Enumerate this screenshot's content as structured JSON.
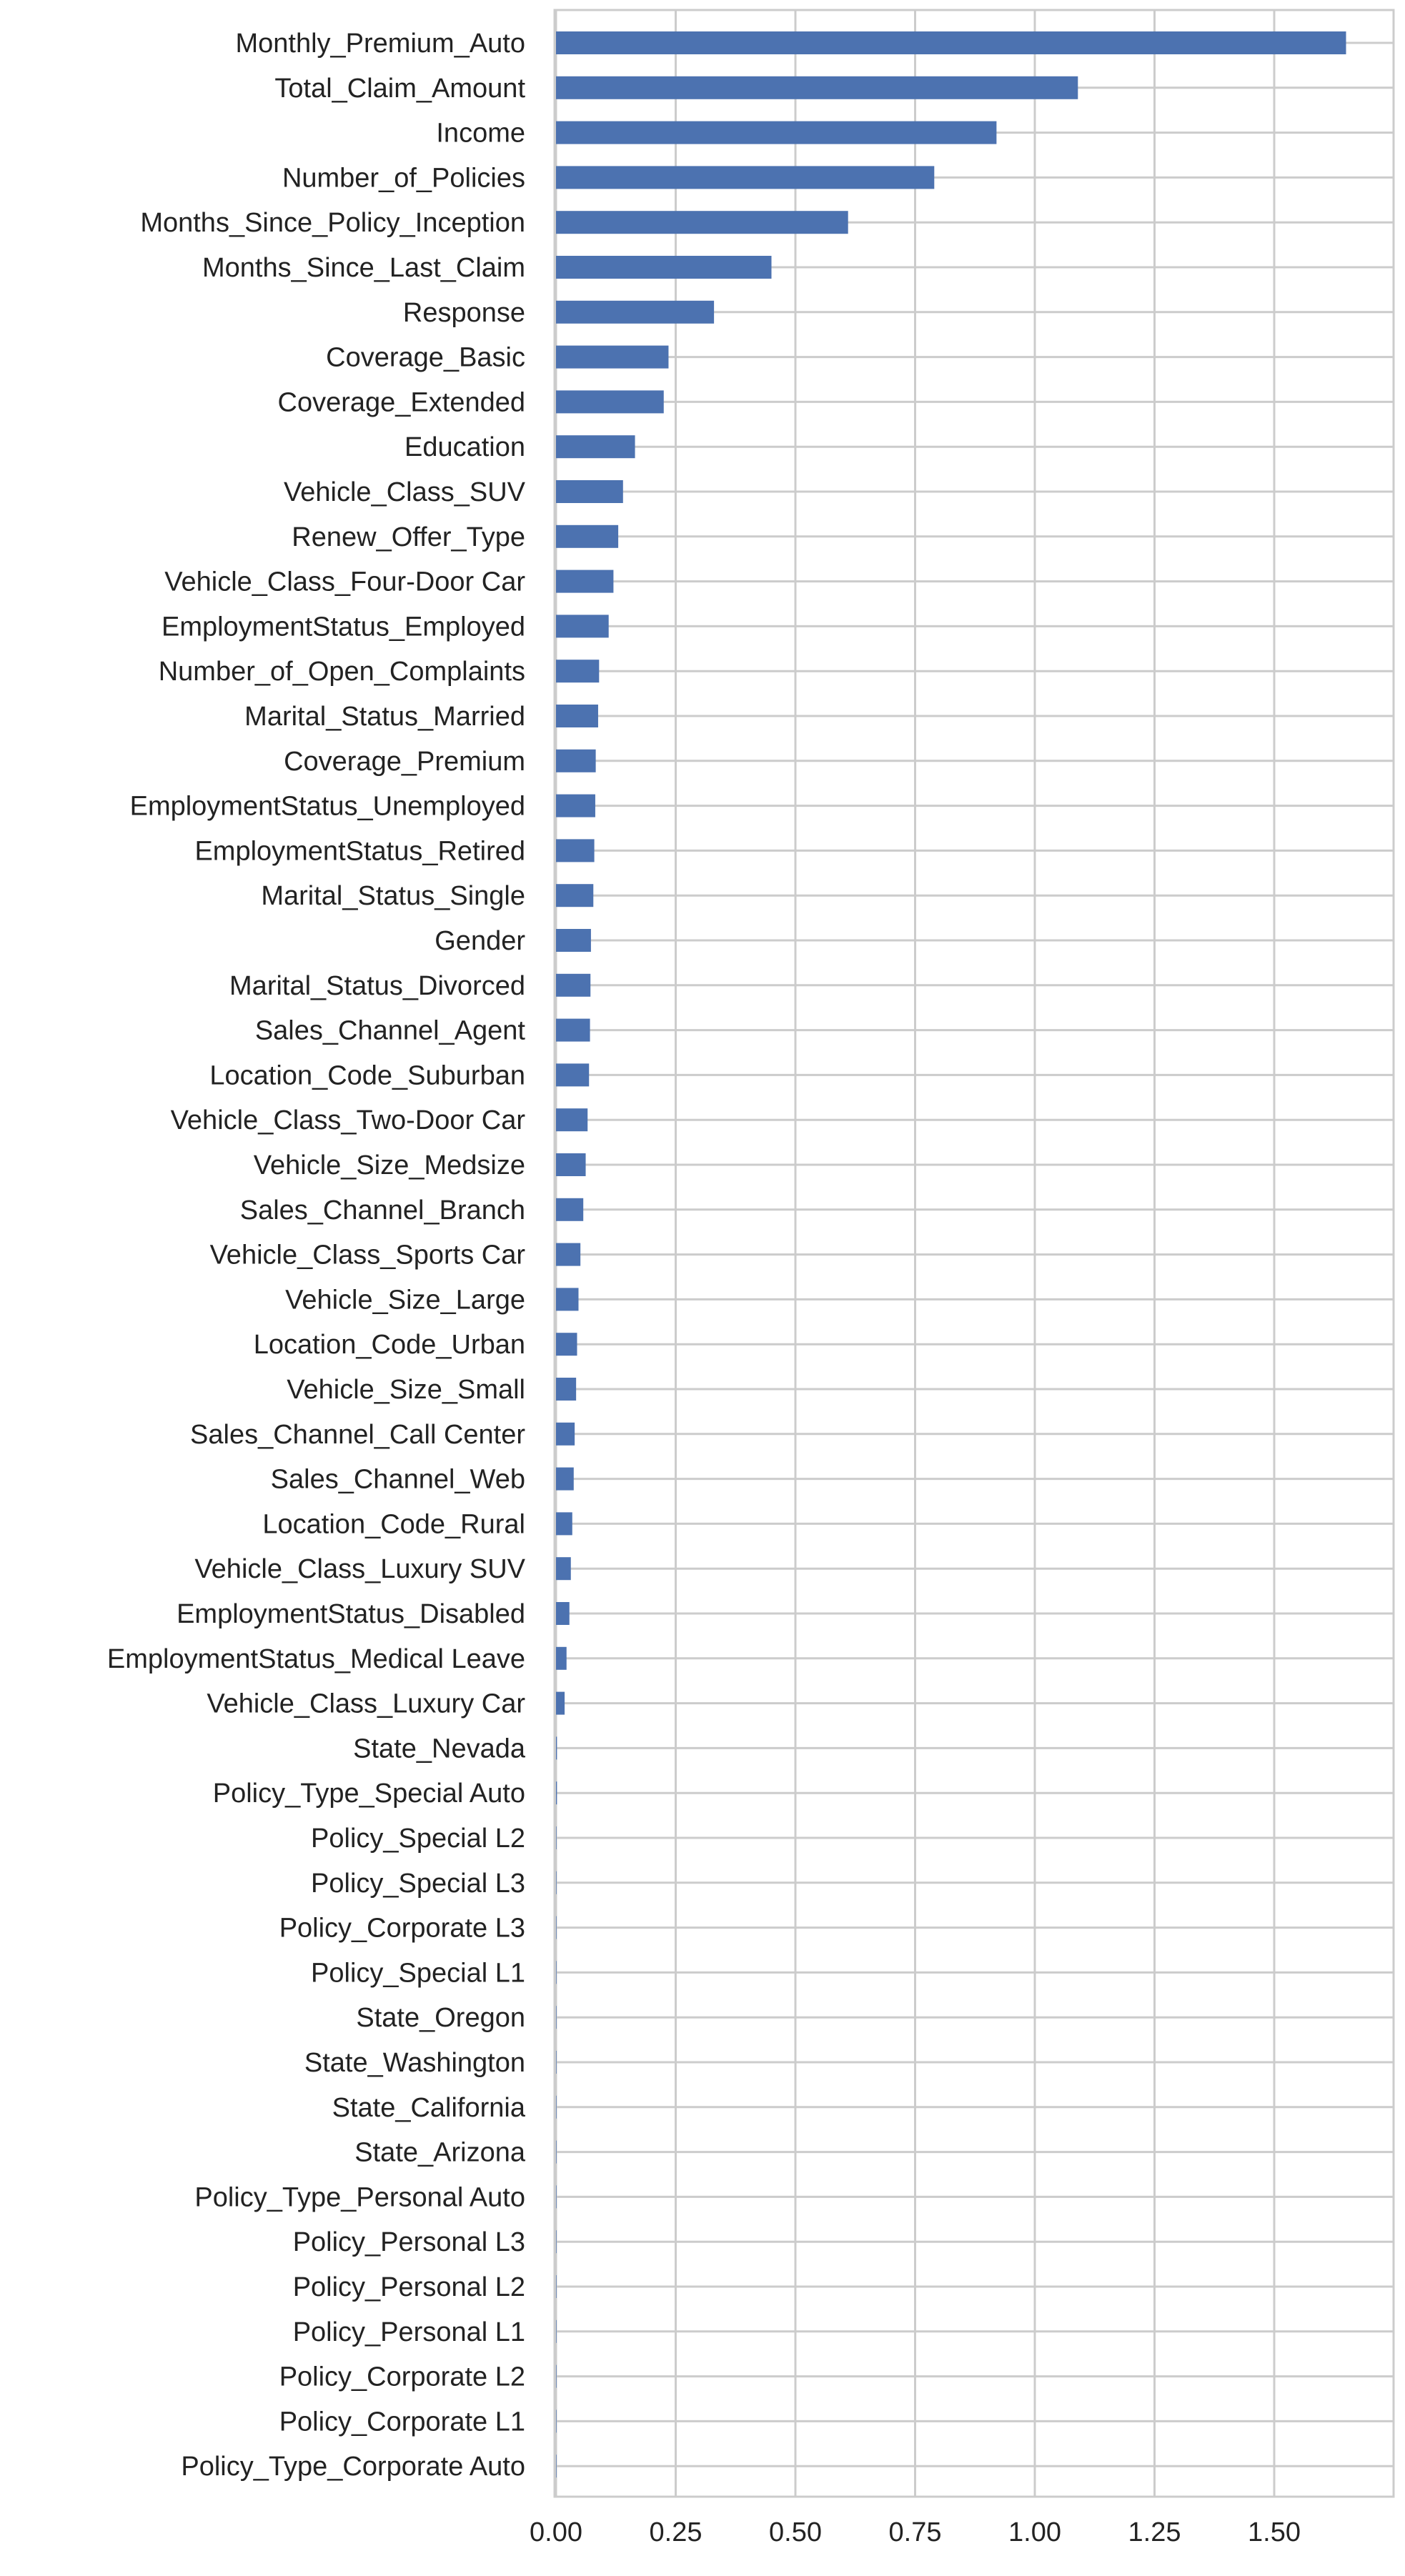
{
  "chart_data": {
    "type": "bar",
    "orientation": "horizontal",
    "title": "",
    "xlabel": "",
    "ylabel": "",
    "xlim": [
      0,
      1.74
    ],
    "x_ticks": [
      "0.00",
      "0.25",
      "0.50",
      "0.75",
      "1.00",
      "1.25",
      "1.50"
    ],
    "x_tick_values": [
      0,
      0.25,
      0.5,
      0.75,
      1.0,
      1.25,
      1.5
    ],
    "grid": true,
    "bar_color": "#4c72b0",
    "grid_color": "#cccccc",
    "categories": [
      "Monthly_Premium_Auto",
      "Total_Claim_Amount",
      "Income",
      "Number_of_Policies",
      "Months_Since_Policy_Inception",
      "Months_Since_Last_Claim",
      "Response",
      "Coverage_Basic",
      "Coverage_Extended",
      "Education",
      "Vehicle_Class_SUV",
      "Renew_Offer_Type",
      "Vehicle_Class_Four-Door Car",
      "EmploymentStatus_Employed",
      "Number_of_Open_Complaints",
      "Marital_Status_Married",
      "Coverage_Premium",
      "EmploymentStatus_Unemployed",
      "EmploymentStatus_Retired",
      "Marital_Status_Single",
      "Gender",
      "Marital_Status_Divorced",
      "Sales_Channel_Agent",
      "Location_Code_Suburban",
      "Vehicle_Class_Two-Door Car",
      "Vehicle_Size_Medsize",
      "Sales_Channel_Branch",
      "Vehicle_Class_Sports Car",
      "Vehicle_Size_Large",
      "Location_Code_Urban",
      "Vehicle_Size_Small",
      "Sales_Channel_Call Center",
      "Sales_Channel_Web",
      "Location_Code_Rural",
      "Vehicle_Class_Luxury SUV",
      "EmploymentStatus_Disabled",
      "EmploymentStatus_Medical Leave",
      "Vehicle_Class_Luxury Car",
      "State_Nevada",
      "Policy_Type_Special Auto",
      "Policy_Special L2",
      "Policy_Special L3",
      "Policy_Corporate L3",
      "Policy_Special L1",
      "State_Oregon",
      "State_Washington",
      "State_California",
      "State_Arizona",
      "Policy_Type_Personal Auto",
      "Policy_Personal L3",
      "Policy_Personal L2",
      "Policy_Personal L1",
      "Policy_Corporate L2",
      "Policy_Corporate L1",
      "Policy_Type_Corporate Auto"
    ],
    "values": [
      1.65,
      1.09,
      0.92,
      0.79,
      0.61,
      0.45,
      0.33,
      0.235,
      0.225,
      0.165,
      0.14,
      0.13,
      0.12,
      0.11,
      0.09,
      0.088,
      0.083,
      0.082,
      0.08,
      0.078,
      0.073,
      0.072,
      0.071,
      0.069,
      0.066,
      0.062,
      0.057,
      0.051,
      0.047,
      0.044,
      0.042,
      0.039,
      0.037,
      0.034,
      0.031,
      0.028,
      0.022,
      0.018,
      0.002,
      0.002,
      0.001,
      0.001,
      0.001,
      0.001,
      0.001,
      0.001,
      0.001,
      0.001,
      0.001,
      0.001,
      0.001,
      0.001,
      0.001,
      0.001,
      0.001
    ]
  }
}
